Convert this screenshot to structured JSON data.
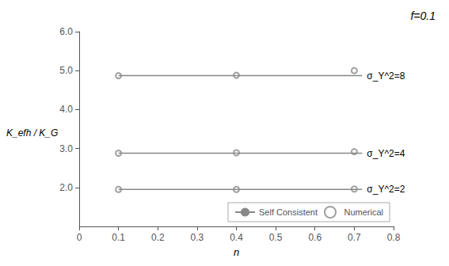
{
  "chart_data": {
    "type": "scatter",
    "title": "f=0.1",
    "xlabel": "n",
    "ylabel": "K_efh / K_G",
    "xlim": [
      0,
      0.8
    ],
    "xticks": [
      0,
      0.1,
      0.2,
      0.3,
      0.4,
      0.5,
      0.6,
      0.7,
      0.8
    ],
    "ylim": [
      1.0,
      6.0
    ],
    "yticks": [
      {
        "value": 2.0,
        "label": "2.0"
      },
      {
        "value": 3.0,
        "label": "3.0"
      },
      {
        "value": 4.0,
        "label": "4.0"
      },
      {
        "value": 5.0,
        "label": "5.0"
      },
      {
        "value": 6.0,
        "label": "6.0"
      }
    ],
    "grid": false,
    "legend": "lower right",
    "series": [
      {
        "name": "Self Consistent",
        "type": "line",
        "line_style": "solid",
        "color": "#888888",
        "x": [
          0.1,
          0.72
        ],
        "values": [
          4.87,
          4.87
        ],
        "label": "σ_Y^2=8"
      },
      {
        "name": "Numerical",
        "type": "scatter",
        "marker": "open circle",
        "color": "#888888",
        "x": [
          0.1,
          0.4,
          0.7
        ],
        "values": [
          4.87,
          4.88,
          5.0
        ]
      },
      {
        "name": "Self Consistent",
        "type": "line",
        "line_style": "solid",
        "color": "#888888",
        "x": [
          0.1,
          0.72
        ],
        "values": [
          2.88,
          2.88
        ],
        "label": "σ_Y^2=4"
      },
      {
        "name": "Numerical",
        "type": "scatter",
        "marker": "open circle",
        "color": "#888888",
        "x": [
          0.1,
          0.4,
          0.7
        ],
        "values": [
          2.88,
          2.89,
          2.92
        ]
      },
      {
        "name": "Self Consistent",
        "type": "line",
        "line_style": "solid",
        "color": "#888888",
        "x": [
          0.1,
          0.72
        ],
        "values": [
          1.95,
          1.95
        ],
        "label": "σ_Y^2=2"
      },
      {
        "name": "Numerical",
        "type": "scatter",
        "marker": "open circle",
        "color": "#888888",
        "x": [
          0.1,
          0.4,
          0.7
        ],
        "values": [
          1.95,
          1.95,
          1.96
        ]
      }
    ]
  }
}
